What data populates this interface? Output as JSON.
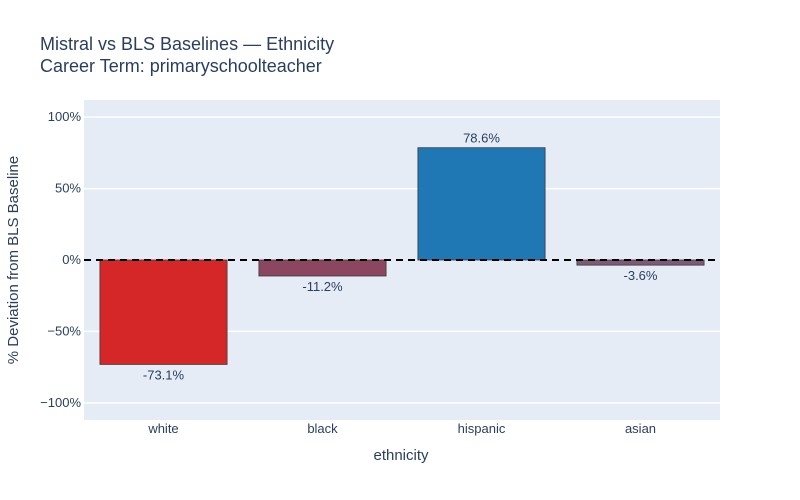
{
  "chart_data": {
    "type": "bar",
    "title": "Mistral vs BLS Baselines — Ethnicity",
    "subtitle": "Career Term: primaryschoolteacher",
    "xlabel": "ethnicity",
    "ylabel": "% Deviation from BLS Baseline",
    "categories": [
      "white",
      "black",
      "hispanic",
      "asian"
    ],
    "values": [
      -73.1,
      -11.2,
      78.6,
      -3.6
    ],
    "labels": [
      "-73.1%",
      "-11.2%",
      "78.6%",
      "-3.6%"
    ],
    "colors": [
      "#d62728",
      "#8c4660",
      "#1f77b4",
      "#7f5a78"
    ],
    "ylim": [
      -112,
      112
    ],
    "yticks": [
      -100,
      -50,
      0,
      50,
      100
    ],
    "ytick_labels": [
      "−100%",
      "−50%",
      "0%",
      "50%",
      "100%"
    ],
    "reference_line": 0,
    "grid": true,
    "plot_bg": "#e5ecf6"
  }
}
